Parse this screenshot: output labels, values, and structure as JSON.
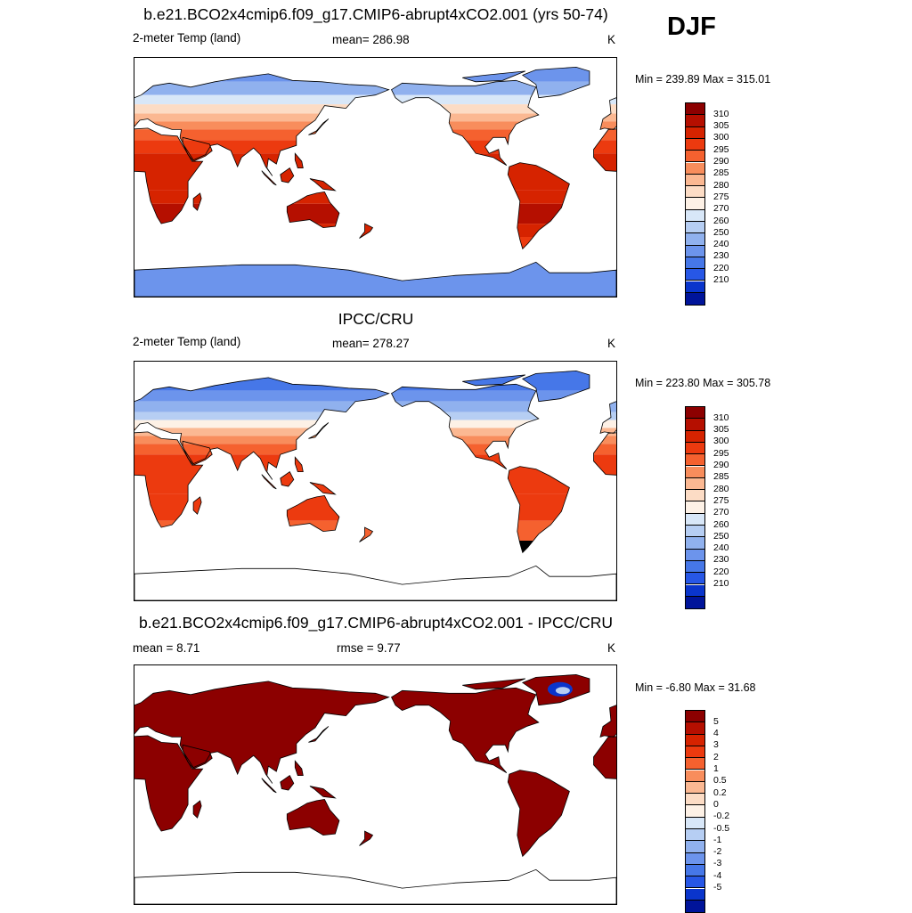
{
  "figure": {
    "season": "DJF"
  },
  "panels": [
    {
      "title": "b.e21.BCO2x4cmip6.f09_g17.CMIP6-abrupt4xCO2.001 (yrs 50-74)",
      "left_label": "2-meter Temp (land)",
      "center_label": "mean= 286.98",
      "units": "K",
      "minmax": "Min = 239.89 Max = 315.01",
      "field": "model",
      "legend": {
        "labels": [
          "310",
          "305",
          "300",
          "295",
          "290",
          "285",
          "280",
          "275",
          "270",
          "260",
          "250",
          "240",
          "230",
          "220",
          "210"
        ],
        "colors": [
          "#8c0000",
          "#b50f00",
          "#d62300",
          "#ec3a0f",
          "#f5612f",
          "#f88d5c",
          "#fbb892",
          "#fcdcc5",
          "#fdf1e6",
          "#d8e7f8",
          "#b6cef3",
          "#90b1ee",
          "#6c94ec",
          "#4677e8",
          "#2757e6",
          "#0a35cc",
          "#00149a"
        ]
      }
    },
    {
      "title": "IPCC/CRU",
      "left_label": "2-meter Temp (land)",
      "center_label": "mean= 278.27",
      "units": "K",
      "minmax": "Min = 223.80 Max = 305.78",
      "field": "obs",
      "legend": {
        "labels": [
          "310",
          "305",
          "300",
          "295",
          "290",
          "285",
          "280",
          "275",
          "270",
          "260",
          "250",
          "240",
          "230",
          "220",
          "210"
        ],
        "colors": [
          "#8c0000",
          "#b50f00",
          "#d62300",
          "#ec3a0f",
          "#f5612f",
          "#f88d5c",
          "#fbb892",
          "#fcdcc5",
          "#fdf1e6",
          "#d8e7f8",
          "#b6cef3",
          "#90b1ee",
          "#6c94ec",
          "#4677e8",
          "#2757e6",
          "#0a35cc",
          "#00149a"
        ]
      }
    },
    {
      "title": "b.e21.BCO2x4cmip6.f09_g17.CMIP6-abrupt4xCO2.001 - IPCC/CRU",
      "left_label": "mean =   8.71",
      "center_label": "rmse =   9.77",
      "units": "K",
      "minmax": "Min =  -6.80 Max =  31.68",
      "field": "diff",
      "legend": {
        "labels": [
          "5",
          "4",
          "3",
          "2",
          "1",
          "0.5",
          "0.2",
          "0",
          "-0.2",
          "-0.5",
          "-1",
          "-2",
          "-3",
          "-4",
          "-5"
        ],
        "colors": [
          "#8c0000",
          "#b50f00",
          "#d62300",
          "#ec3a0f",
          "#f5612f",
          "#f88d5c",
          "#fbb892",
          "#fcdcc5",
          "#fdf1e6",
          "#d8e7f8",
          "#b6cef3",
          "#90b1ee",
          "#6c94ec",
          "#4677e8",
          "#2757e6",
          "#0a35cc",
          "#00149a"
        ]
      }
    }
  ]
}
